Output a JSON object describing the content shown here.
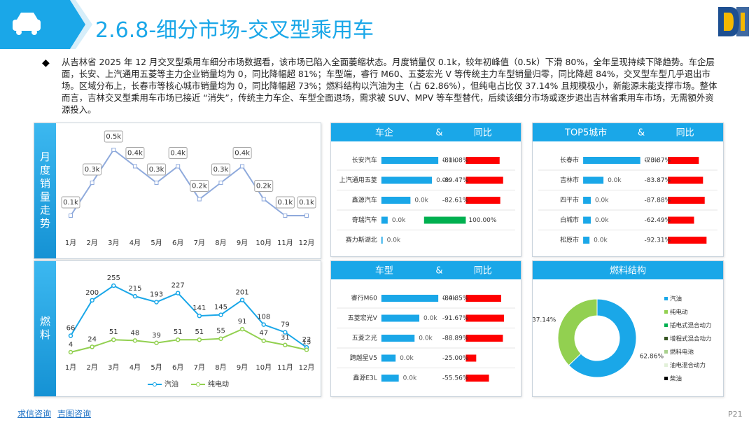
{
  "header": {
    "title": "2.6.8-细分市场-交叉型乘用车"
  },
  "text": "从吉林省 2025 年 12 月交叉型乘用车细分市场数据看，该市场已陷入全面萎缩状态。月度销量仅 0.1k，较年初峰值（0.5k）下滑 80%，全年呈现持续下降趋势。车企层面，长安、上汽通用五菱等主力企业销量均为 0，同比降幅超 81%；车型端，睿行 M60、五菱宏光 V 等传统主力车型销量归零，同比降超 84%，交叉型车型几乎退出市场。区域分布上，长春市等核心城市销量均为 0，同比降幅超 73%；燃料结构以汽油为主（占 62.86%），但纯电占比仅 37.14% 且规模极小，新能源未能支撑市场。整体而言，吉林交叉型乘用车市场已接近 “消失”，传统主力车企、车型全面退场，需求被 SUV、MPV 等车型替代，后续该细分市场或逐步退出吉林省乘用车市场，无需额外资源投入。",
  "chart_data": [
    {
      "type": "line",
      "title": "月度销量走势",
      "categories": [
        "1月",
        "2月",
        "3月",
        "4月",
        "5月",
        "6月",
        "7月",
        "8月",
        "9月",
        "10月",
        "11月",
        "12月"
      ],
      "values": [
        0.1,
        0.3,
        0.5,
        0.4,
        0.3,
        0.4,
        0.2,
        0.3,
        0.4,
        0.2,
        0.1,
        0.1
      ],
      "value_labels": [
        "0.1k",
        "0.3k",
        "0.5k",
        "0.4k",
        "0.3k",
        "0.4k",
        "0.2k",
        "0.3k",
        "0.4k",
        "0.2k",
        "0.1k",
        "0.1k"
      ],
      "color": "#8faadc"
    },
    {
      "type": "line",
      "title": "燃料",
      "categories": [
        "1月",
        "2月",
        "3月",
        "4月",
        "5月",
        "6月",
        "7月",
        "8月",
        "9月",
        "10月",
        "11月",
        "12月"
      ],
      "series": [
        {
          "name": "汽油",
          "color": "#1aa7e8",
          "values": [
            66,
            200,
            255,
            215,
            193,
            227,
            141,
            145,
            201,
            108,
            79,
            22
          ]
        },
        {
          "name": "纯电动",
          "color": "#92d050",
          "values": [
            4,
            24,
            51,
            48,
            39,
            51,
            51,
            55,
            91,
            47,
            31,
            13
          ]
        }
      ]
    },
    {
      "type": "hbar",
      "headers": [
        "车企",
        "&",
        "同比"
      ],
      "categories": [
        "长安汽车",
        "上汽通用五菱",
        "鑫源汽车",
        "奇瑞汽车",
        "赛力斯湖北"
      ],
      "values": [
        0.045,
        0.04,
        0.023,
        0.005,
        0.001
      ],
      "value_labels": [
        "0.0k",
        "0.0k",
        "0.0k",
        "0.0k",
        "0.0k"
      ],
      "growth": [
        -81.08,
        -89.47,
        -82.61,
        100.0,
        null
      ],
      "growth_labels": [
        "-81.08%",
        "-89.47%",
        "-82.61%",
        "100.00%",
        null
      ],
      "color": "#1aa7e8",
      "negative_color": "#ff0000",
      "positive_color": "#00b050"
    },
    {
      "type": "hbar",
      "headers": [
        "TOP5城市",
        "&",
        "同比"
      ],
      "categories": [
        "长春市",
        "吉林市",
        "四平市",
        "白城市",
        "松原市"
      ],
      "values": [
        0.045,
        0.016,
        0.006,
        0.006,
        0.005
      ],
      "value_labels": [
        "0.0k",
        "0.0k",
        "0.0k",
        "0.0k",
        "0.0k"
      ],
      "growth": [
        -73.87,
        -83.87,
        -87.88,
        -62.49,
        -92.31
      ],
      "growth_labels": [
        "-73.87%",
        "-83.87%",
        "-87.88%",
        "-62.49%",
        "-92.31%"
      ],
      "color": "#1aa7e8",
      "negative_color": "#ff0000",
      "positive_color": "#00b050"
    },
    {
      "type": "hbar",
      "headers": [
        "车型",
        "&",
        "同比"
      ],
      "categories": [
        "睿行M60",
        "五菱宏光V",
        "五菱之光",
        "跨越星V5",
        "鑫源E3L"
      ],
      "values": [
        0.036,
        0.024,
        0.021,
        0.009,
        0.011
      ],
      "value_labels": [
        "0.0k",
        "0.0k",
        "0.0k",
        "0.0k",
        "0.0k"
      ],
      "growth": [
        -84.85,
        -91.67,
        -88.89,
        -25.0,
        -55.56
      ],
      "growth_labels": [
        "-84.85%",
        "-91.67%",
        "-88.89%",
        "-25.00%",
        "-55.56%"
      ],
      "color": "#1aa7e8",
      "negative_color": "#ff0000",
      "positive_color": "#00b050"
    },
    {
      "type": "pie",
      "title": "燃料结构",
      "categories": [
        "汽油",
        "纯电动",
        "插电式混合动力",
        "增程式混合动力",
        "燃料电池",
        "油电混合动力",
        "柴油"
      ],
      "values": [
        62.86,
        37.14,
        0,
        0,
        0,
        0,
        0
      ],
      "value_labels": [
        "62.86%",
        "37.14%",
        null,
        null,
        null,
        null,
        null
      ],
      "colors": [
        "#1aa7e8",
        "#92d050",
        "#00b050",
        "#375623",
        "#a9d18e",
        "#e2f0d9",
        "#000000"
      ]
    }
  ],
  "footer": {
    "links": [
      "求信咨询",
      "吉图咨询"
    ],
    "page": "P21"
  }
}
